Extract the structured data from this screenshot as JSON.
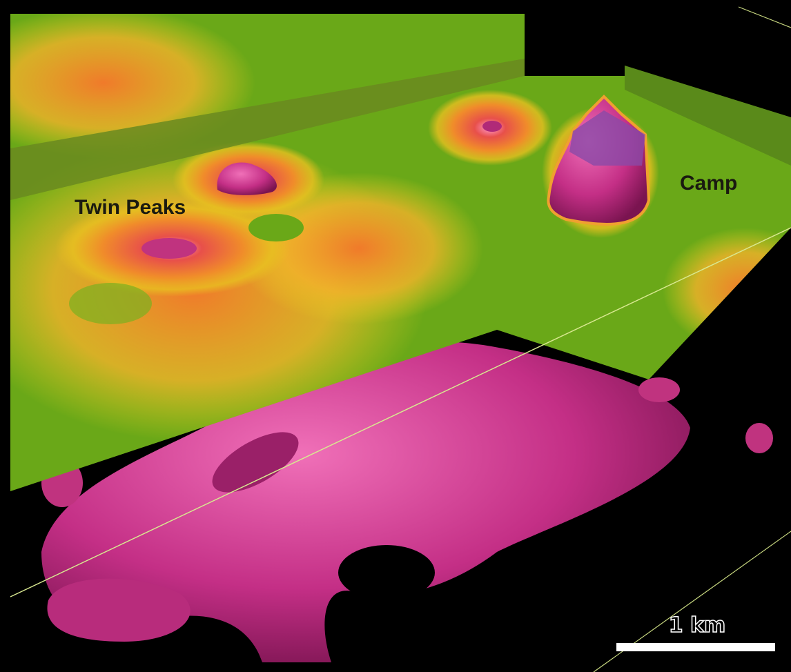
{
  "labels": [
    {
      "text": "Twin Peaks"
    },
    {
      "text": "Camp"
    }
  ],
  "scale_bar": {
    "label": "1 km"
  }
}
